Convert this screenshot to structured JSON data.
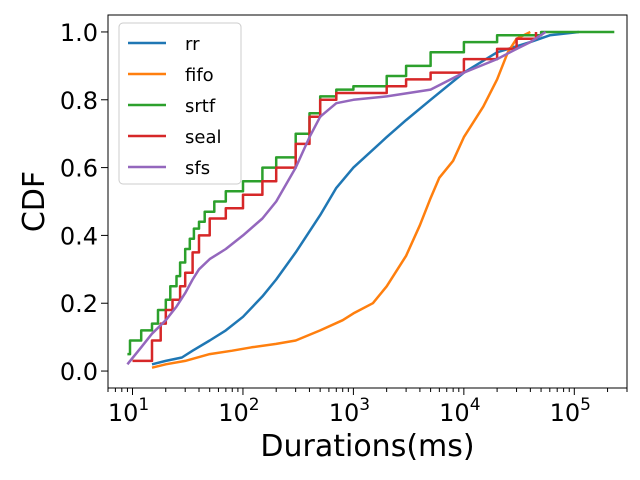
{
  "chart_data": {
    "type": "line",
    "xlabel": "Durations(ms)",
    "ylabel": "CDF",
    "xscale": "log",
    "xlim": [
      6,
      300000
    ],
    "ylim": [
      -0.05,
      1.05
    ],
    "xticks": [
      {
        "value": 10,
        "base": "10",
        "exp": "1"
      },
      {
        "value": 100,
        "base": "10",
        "exp": "2"
      },
      {
        "value": 1000,
        "base": "10",
        "exp": "3"
      },
      {
        "value": 10000,
        "base": "10",
        "exp": "4"
      },
      {
        "value": 100000,
        "base": "10",
        "exp": "5"
      }
    ],
    "yticks": [
      {
        "value": 0.0,
        "label": "0.0"
      },
      {
        "value": 0.2,
        "label": "0.2"
      },
      {
        "value": 0.4,
        "label": "0.4"
      },
      {
        "value": 0.6,
        "label": "0.6"
      },
      {
        "value": 0.8,
        "label": "0.8"
      },
      {
        "value": 1.0,
        "label": "1.0"
      }
    ],
    "grid": false,
    "legend": "top-left",
    "series": [
      {
        "name": "rr",
        "color": "#1f77b4",
        "step": false,
        "x": [
          15,
          20,
          28,
          35,
          50,
          70,
          100,
          150,
          200,
          300,
          500,
          700,
          1000,
          2000,
          3000,
          5000,
          10000,
          20000,
          40000,
          60000,
          110000
        ],
        "y": [
          0.02,
          0.03,
          0.04,
          0.06,
          0.09,
          0.12,
          0.16,
          0.22,
          0.27,
          0.35,
          0.46,
          0.54,
          0.6,
          0.69,
          0.74,
          0.8,
          0.88,
          0.94,
          0.97,
          0.99,
          1.0
        ]
      },
      {
        "name": "fifo",
        "color": "#ff7f0e",
        "step": false,
        "x": [
          15,
          20,
          30,
          50,
          80,
          120,
          200,
          300,
          500,
          800,
          1000,
          1500,
          2000,
          3000,
          4000,
          5000,
          6000,
          8000,
          10000,
          15000,
          20000,
          25000,
          30000,
          40000
        ],
        "y": [
          0.01,
          0.02,
          0.03,
          0.05,
          0.06,
          0.07,
          0.08,
          0.09,
          0.12,
          0.15,
          0.17,
          0.2,
          0.25,
          0.34,
          0.43,
          0.51,
          0.57,
          0.62,
          0.69,
          0.78,
          0.86,
          0.94,
          0.98,
          1.0
        ]
      },
      {
        "name": "srtf",
        "color": "#2ca02c",
        "step": true,
        "x": [
          9,
          9.5,
          12,
          15,
          17,
          20,
          22,
          25,
          27,
          30,
          33,
          36,
          40,
          45,
          55,
          70,
          100,
          150,
          200,
          300,
          400,
          500,
          700,
          1000,
          2000,
          3000,
          5000,
          10000,
          20000,
          50000,
          100000,
          230000
        ],
        "y": [
          0.05,
          0.09,
          0.12,
          0.14,
          0.18,
          0.21,
          0.25,
          0.28,
          0.32,
          0.36,
          0.39,
          0.42,
          0.44,
          0.47,
          0.5,
          0.53,
          0.56,
          0.6,
          0.63,
          0.7,
          0.76,
          0.81,
          0.83,
          0.84,
          0.87,
          0.9,
          0.94,
          0.97,
          0.99,
          1.0,
          1.0,
          1.0
        ]
      },
      {
        "name": "seal",
        "color": "#d62728",
        "step": true,
        "x": [
          10,
          15,
          18,
          20,
          23,
          27,
          30,
          35,
          40,
          50,
          70,
          100,
          150,
          200,
          300,
          400,
          500,
          700,
          1000,
          2000,
          3000,
          5000,
          10000,
          20000,
          30000,
          45000
        ],
        "y": [
          0.03,
          0.09,
          0.14,
          0.18,
          0.21,
          0.25,
          0.29,
          0.35,
          0.4,
          0.45,
          0.48,
          0.52,
          0.56,
          0.6,
          0.67,
          0.75,
          0.8,
          0.82,
          0.82,
          0.84,
          0.86,
          0.88,
          0.92,
          0.95,
          0.98,
          1.0
        ]
      },
      {
        "name": "sfs",
        "color": "#9467bd",
        "step": false,
        "x": [
          9,
          12,
          15,
          20,
          25,
          30,
          35,
          40,
          50,
          70,
          100,
          150,
          200,
          300,
          400,
          500,
          700,
          1000,
          2000,
          5000,
          10000,
          20000,
          30000,
          40000,
          55000
        ],
        "y": [
          0.02,
          0.07,
          0.11,
          0.15,
          0.19,
          0.23,
          0.27,
          0.3,
          0.33,
          0.36,
          0.4,
          0.45,
          0.5,
          0.6,
          0.69,
          0.75,
          0.79,
          0.8,
          0.81,
          0.83,
          0.88,
          0.92,
          0.95,
          0.97,
          1.0
        ]
      }
    ]
  }
}
